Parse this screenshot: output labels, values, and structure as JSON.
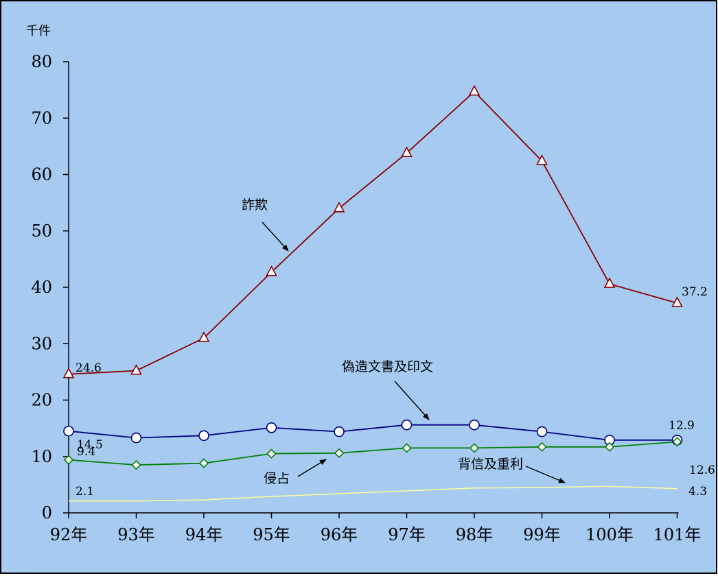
{
  "chart_data": {
    "type": "line",
    "ylabel": "千件",
    "ylim": [
      0,
      80
    ],
    "yticks": [
      "0",
      "10",
      "20",
      "30",
      "40",
      "50",
      "60",
      "70",
      "80"
    ],
    "categories": [
      "92年",
      "93年",
      "94年",
      "95年",
      "96年",
      "97年",
      "98年",
      "99年",
      "100年",
      "101年"
    ],
    "series": [
      {
        "name": "詐欺",
        "values": [
          24.6,
          25.2,
          31.0,
          42.7,
          54.0,
          63.8,
          74.7,
          62.4,
          40.6,
          37.2
        ],
        "color": "#8b0000",
        "marker": "triangle"
      },
      {
        "name": "偽造文書及印文",
        "values": [
          14.5,
          13.3,
          13.7,
          15.1,
          14.4,
          15.6,
          15.6,
          14.4,
          12.9,
          12.9
        ],
        "color": "#000080",
        "marker": "circle"
      },
      {
        "name": "侵占",
        "values": [
          9.4,
          8.5,
          8.8,
          10.5,
          10.6,
          11.5,
          11.5,
          11.7,
          11.7,
          12.6
        ],
        "color": "#008000",
        "marker": "diamond"
      },
      {
        "name": "背信及重利",
        "values": [
          2.1,
          2.1,
          2.3,
          2.9,
          3.4,
          3.9,
          4.4,
          4.5,
          4.7,
          4.3
        ],
        "color": "#ffff99",
        "marker": "none"
      }
    ],
    "data_labels": [
      {
        "text": "24.6"
      },
      {
        "text": "37.2"
      },
      {
        "text": "14.5"
      },
      {
        "text": "12.9"
      },
      {
        "text": "9.4"
      },
      {
        "text": "12.6"
      },
      {
        "text": "2.1"
      },
      {
        "text": "4.3"
      }
    ],
    "annotations": [
      {
        "text": "詐欺"
      },
      {
        "text": "偽造文書及印文"
      },
      {
        "text": "侵占"
      },
      {
        "text": "背信及重利"
      }
    ],
    "grid": false,
    "legend": "none",
    "background": "#a6caf0"
  }
}
